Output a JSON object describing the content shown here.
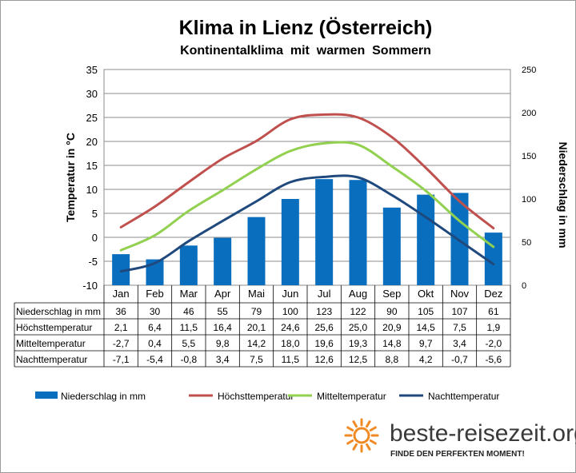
{
  "chart_data": {
    "type": "bar+line",
    "title": "Klima in Lienz (Österreich)",
    "subtitle": "Kontinentalklima  mit  warmen  Sommern",
    "categories": [
      "Jan",
      "Feb",
      "Mar",
      "Apr",
      "Mai",
      "Jun",
      "Jul",
      "Aug",
      "Sep",
      "Okt",
      "Nov",
      "Dez"
    ],
    "y_left": {
      "label": "Temperatur in °C",
      "min": -10,
      "max": 35,
      "step": 5
    },
    "y_right": {
      "label": "Niederschlag in mm",
      "min": 0,
      "max": 250,
      "step": 50
    },
    "grid": "horizontal",
    "legend_position": "bottom",
    "series": [
      {
        "name": "Niederschlag in mm",
        "type": "bar",
        "axis": "right",
        "color": "#0a6ebe",
        "values": [
          36,
          30,
          46,
          55,
          79,
          100,
          123,
          122,
          90,
          105,
          107,
          61
        ],
        "labels": [
          "36",
          "30",
          "46",
          "55",
          "79",
          "100",
          "123",
          "122",
          "90",
          "105",
          "107",
          "61"
        ]
      },
      {
        "name": "Höchsttemperatur",
        "type": "line",
        "axis": "left",
        "color": "#c0504d",
        "values": [
          2.1,
          6.4,
          11.5,
          16.4,
          20.1,
          24.6,
          25.6,
          25.0,
          20.9,
          14.5,
          7.5,
          1.9
        ],
        "labels": [
          "2,1",
          "6,4",
          "11,5",
          "16,4",
          "20,1",
          "24,6",
          "25,6",
          "25,0",
          "20,9",
          "14,5",
          "7,5",
          "1,9"
        ]
      },
      {
        "name": "Mitteltemperatur",
        "type": "line",
        "axis": "left",
        "color": "#92d050",
        "values": [
          -2.7,
          0.4,
          5.5,
          9.8,
          14.2,
          18.0,
          19.6,
          19.3,
          14.8,
          9.7,
          3.4,
          -2.0
        ],
        "labels": [
          "-2,7",
          "0,4",
          "5,5",
          "9,8",
          "14,2",
          "18,0",
          "19,6",
          "19,3",
          "14,8",
          "9,7",
          "3,4",
          "-2,0"
        ]
      },
      {
        "name": "Nachttemperatur",
        "type": "line",
        "axis": "left",
        "color": "#1f497d",
        "values": [
          -7.1,
          -5.4,
          -0.8,
          3.4,
          7.5,
          11.5,
          12.6,
          12.5,
          8.8,
          4.2,
          -0.7,
          -5.6
        ],
        "labels": [
          "-7,1",
          "-5,4",
          "-0,8",
          "3,4",
          "7,5",
          "11,5",
          "12,6",
          "12,5",
          "8,8",
          "4,2",
          "-0,7",
          "-5,6"
        ]
      }
    ]
  },
  "branding": {
    "site": "beste-reisezeit.org",
    "slogan": "FINDE DEN PERFEKTEN MOMENT!",
    "sun_color": "#f08a24"
  }
}
